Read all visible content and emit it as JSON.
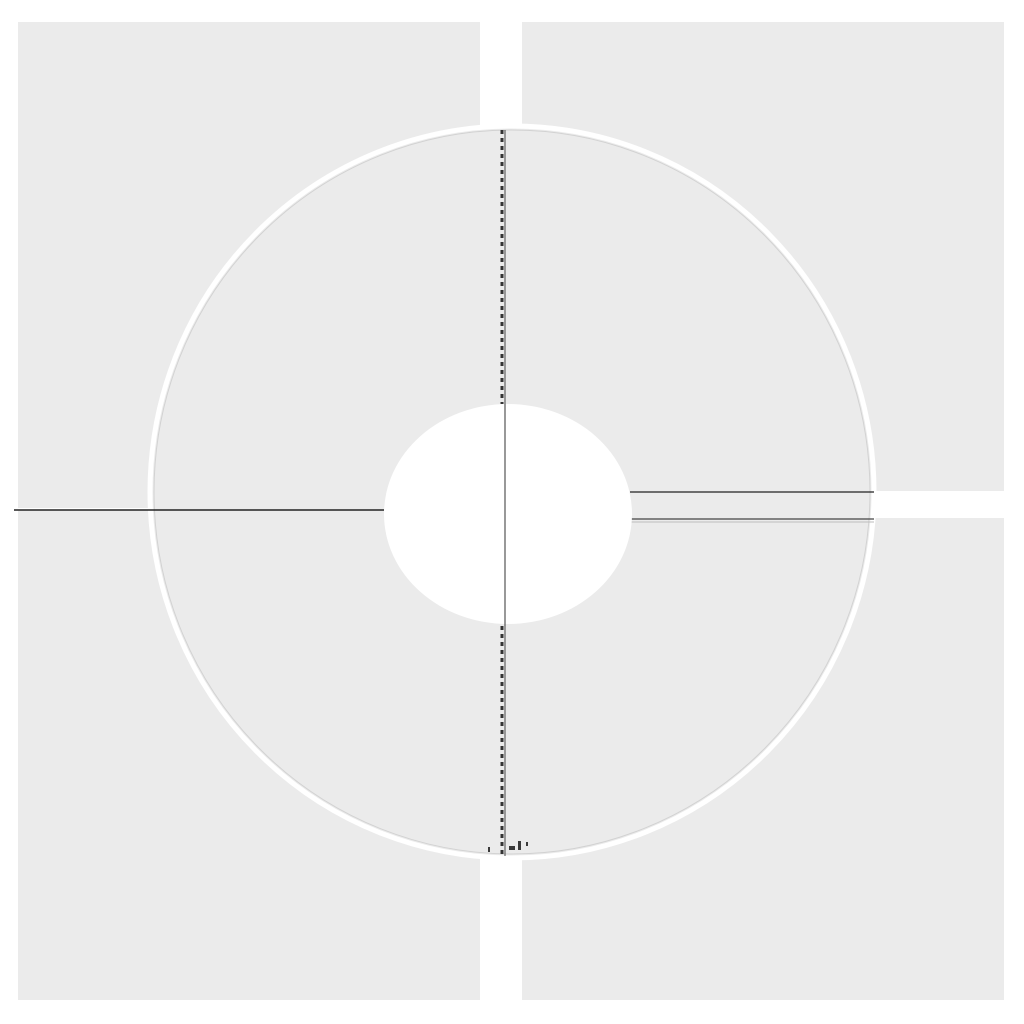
{
  "colors": {
    "background": "#ffffff",
    "panel": "#ebebeb",
    "ring_outline": "#ffffff",
    "line": "#222222",
    "tick": "#3a3a3a",
    "hub": "#ffffff"
  },
  "diagram": {
    "panel_count": 4,
    "ring_count": 1,
    "hub_count": 1,
    "rule_count": 3
  }
}
